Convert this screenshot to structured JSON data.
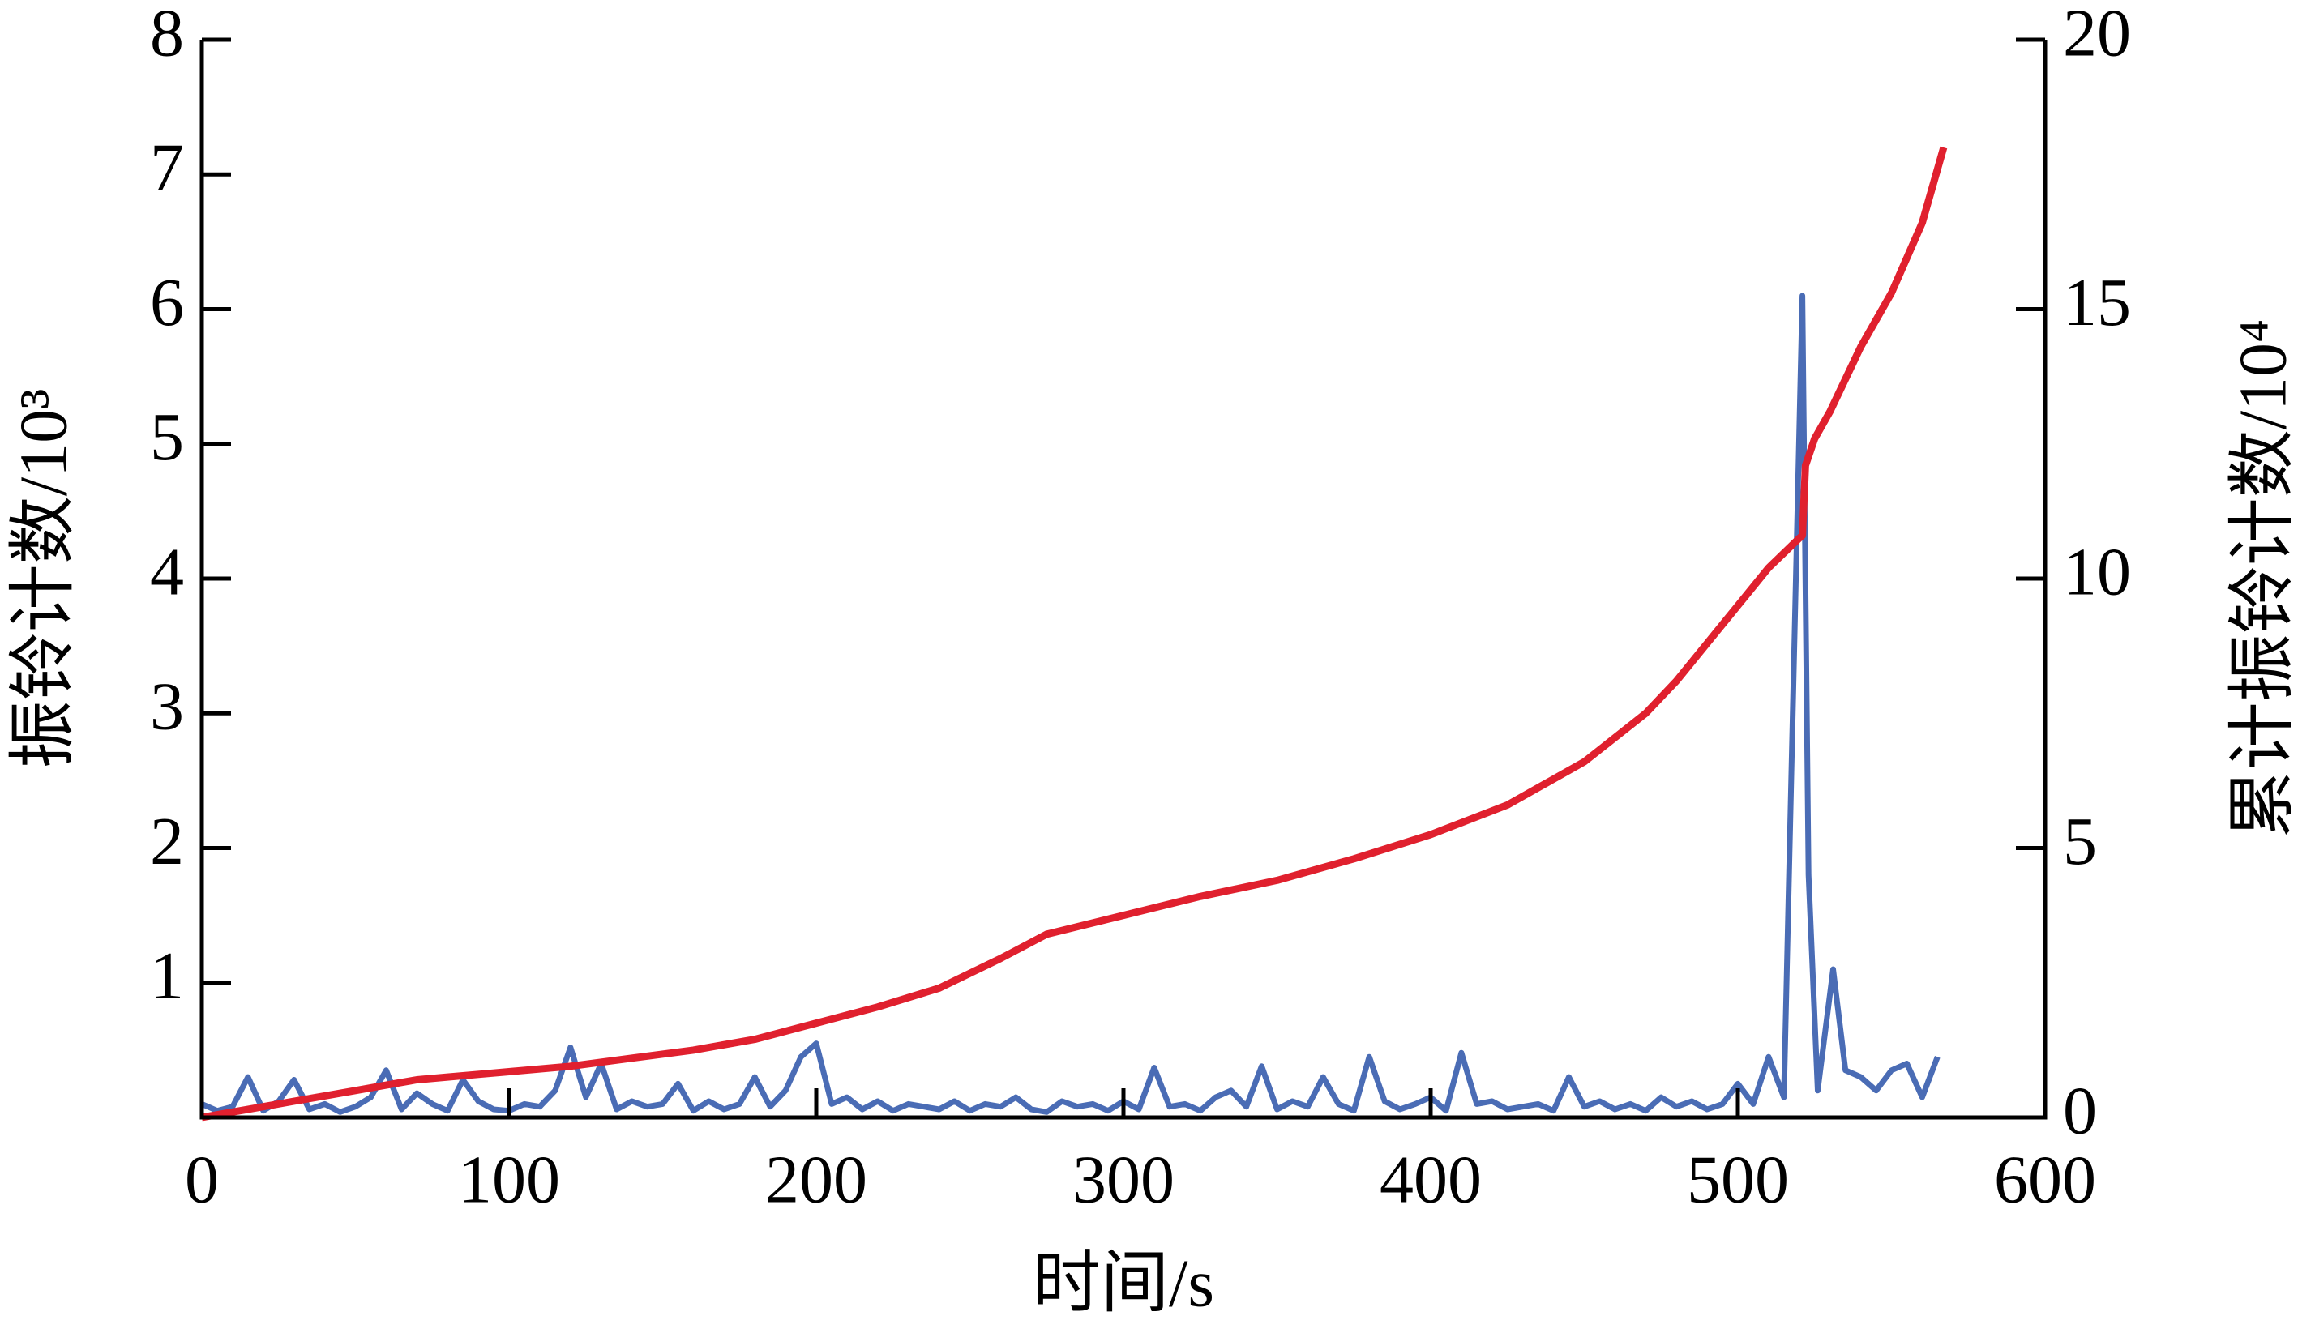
{
  "chart_data": {
    "type": "line",
    "x_label": "时间/s",
    "y_label": "振铃计数/10³",
    "y2_label": "累计振铃计数/10⁴",
    "xlim": [
      0,
      600
    ],
    "xticks": [
      0,
      100,
      200,
      300,
      400,
      500,
      600
    ],
    "ylim": [
      0,
      8
    ],
    "yticks": [
      1,
      2,
      3,
      4,
      5,
      6,
      7,
      8
    ],
    "y2lim": [
      0,
      20
    ],
    "y2ticks": [
      0,
      5,
      10,
      15,
      20
    ],
    "series": [
      {
        "color": "#4a6cb5",
        "x": [
          0,
          5,
          10,
          15,
          20,
          25,
          30,
          35,
          40,
          45,
          50,
          55,
          60,
          65,
          70,
          75,
          80,
          85,
          90,
          95,
          100,
          105,
          110,
          115,
          120,
          125,
          130,
          135,
          140,
          145,
          150,
          155,
          160,
          165,
          170,
          175,
          180,
          185,
          190,
          195,
          200,
          205,
          210,
          215,
          220,
          225,
          230,
          235,
          240,
          245,
          250,
          255,
          260,
          265,
          270,
          275,
          280,
          285,
          290,
          295,
          300,
          305,
          310,
          315,
          320,
          325,
          330,
          335,
          340,
          345,
          350,
          355,
          360,
          365,
          370,
          375,
          380,
          385,
          390,
          395,
          400,
          405,
          410,
          415,
          420,
          425,
          430,
          435,
          440,
          445,
          450,
          455,
          460,
          465,
          470,
          475,
          480,
          485,
          490,
          495,
          500,
          505,
          510,
          515,
          521,
          523,
          526,
          531,
          535,
          540,
          545,
          550,
          555,
          560,
          565
        ],
        "values": [
          0.1,
          0.05,
          0.08,
          0.3,
          0.05,
          0.12,
          0.28,
          0.06,
          0.1,
          0.04,
          0.08,
          0.15,
          0.35,
          0.06,
          0.18,
          0.1,
          0.05,
          0.28,
          0.12,
          0.06,
          0.05,
          0.1,
          0.08,
          0.2,
          0.52,
          0.15,
          0.4,
          0.06,
          0.12,
          0.08,
          0.1,
          0.25,
          0.05,
          0.12,
          0.06,
          0.1,
          0.3,
          0.08,
          0.2,
          0.45,
          0.55,
          0.1,
          0.15,
          0.06,
          0.12,
          0.05,
          0.1,
          0.08,
          0.06,
          0.12,
          0.05,
          0.1,
          0.08,
          0.15,
          0.06,
          0.04,
          0.12,
          0.08,
          0.1,
          0.05,
          0.12,
          0.06,
          0.37,
          0.08,
          0.1,
          0.05,
          0.15,
          0.2,
          0.08,
          0.38,
          0.06,
          0.12,
          0.08,
          0.3,
          0.1,
          0.05,
          0.45,
          0.12,
          0.06,
          0.1,
          0.15,
          0.05,
          0.48,
          0.1,
          0.12,
          0.06,
          0.08,
          0.1,
          0.05,
          0.3,
          0.08,
          0.12,
          0.06,
          0.1,
          0.05,
          0.15,
          0.08,
          0.12,
          0.06,
          0.1,
          0.25,
          0.1,
          0.45,
          0.15,
          6.1,
          1.8,
          0.2,
          1.1,
          0.35,
          0.3,
          0.2,
          0.35,
          0.4,
          0.15,
          0.45
        ]
      },
      {
        "color": "#e0202e",
        "axis": "y2",
        "x": [
          0,
          10,
          20,
          30,
          40,
          50,
          60,
          70,
          80,
          90,
          100,
          120,
          140,
          160,
          180,
          200,
          220,
          240,
          260,
          275,
          300,
          325,
          350,
          375,
          400,
          425,
          450,
          470,
          480,
          490,
          500,
          510,
          520,
          521,
          522,
          525,
          530,
          540,
          550,
          560,
          567
        ],
        "values": [
          0,
          0.1,
          0.2,
          0.3,
          0.4,
          0.5,
          0.6,
          0.7,
          0.75,
          0.8,
          0.85,
          0.95,
          1.1,
          1.25,
          1.45,
          1.75,
          2.05,
          2.4,
          2.95,
          3.4,
          3.75,
          4.1,
          4.4,
          4.8,
          5.25,
          5.8,
          6.6,
          7.5,
          8.1,
          8.8,
          9.5,
          10.2,
          10.75,
          10.8,
          12.1,
          12.6,
          13.1,
          14.3,
          15.3,
          16.6,
          18.0
        ]
      }
    ]
  }
}
